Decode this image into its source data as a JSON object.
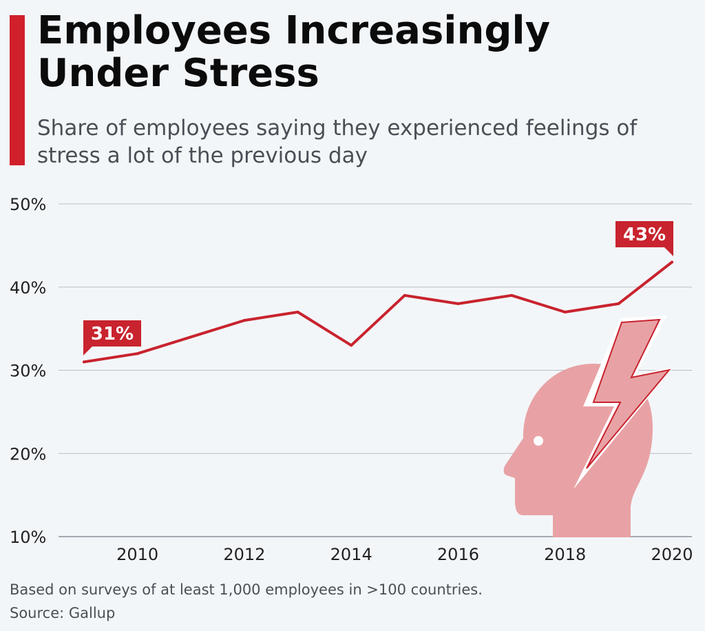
{
  "header": {
    "title": "Employees Increasingly Under Stress",
    "subtitle": "Share of employees saying they experienced feelings of stress a lot of the previous day"
  },
  "footer": {
    "note": "Based on surveys of at least 1,000 employees in >100 countries.",
    "source": "Source: Gallup"
  },
  "colors": {
    "accent": "#d0202b",
    "line": "#c8232e",
    "grid": "#b8bec6",
    "illustration": "#e8a2a5"
  },
  "illustration": {
    "icon": "stressed-head-lightning-icon"
  },
  "chart_data": {
    "type": "line",
    "title": "Employees Increasingly Under Stress",
    "subtitle": "Share of employees saying they experienced feelings of stress a lot of the previous day",
    "xlabel": "",
    "ylabel": "",
    "x": [
      2009,
      2010,
      2011,
      2012,
      2013,
      2014,
      2015,
      2016,
      2017,
      2018,
      2019,
      2020
    ],
    "series": [
      {
        "values": [
          31,
          32,
          34,
          36,
          37,
          33,
          39,
          38,
          39,
          37,
          38,
          43
        ]
      }
    ],
    "ylim": [
      10,
      50
    ],
    "yticks": [
      10,
      20,
      30,
      40,
      50
    ],
    "ytick_labels": [
      "10%",
      "20%",
      "30%",
      "40%",
      "50%"
    ],
    "xticks": [
      2010,
      2012,
      2014,
      2016,
      2018,
      2020
    ],
    "xtick_labels": [
      "2010",
      "2012",
      "2014",
      "2016",
      "2018",
      "2020"
    ],
    "grid": true,
    "annotations": [
      {
        "x": 2009,
        "y": 31,
        "label": "31%"
      },
      {
        "x": 2020,
        "y": 43,
        "label": "43%"
      }
    ]
  }
}
